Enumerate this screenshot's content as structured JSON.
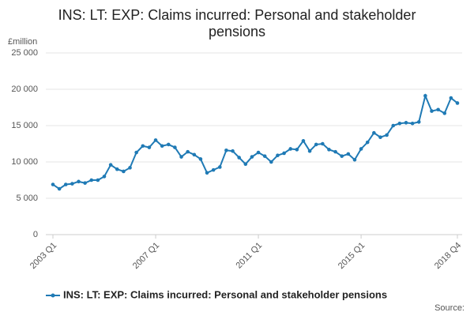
{
  "chart_data": {
    "type": "line",
    "title": [
      "INS: LT: EXP: Claims incurred: Personal and stakeholder",
      "pensions"
    ],
    "y_label": "£million",
    "source": "Source:",
    "categories": [
      "2003 Q1",
      null,
      null,
      null,
      null,
      null,
      null,
      null,
      null,
      null,
      null,
      null,
      null,
      null,
      null,
      null,
      "2007 Q1",
      null,
      null,
      null,
      null,
      null,
      null,
      null,
      null,
      null,
      null,
      null,
      null,
      null,
      null,
      null,
      "2011 Q1",
      null,
      null,
      null,
      null,
      null,
      null,
      null,
      null,
      null,
      null,
      null,
      null,
      null,
      null,
      null,
      "2015 Q1",
      null,
      null,
      null,
      null,
      null,
      null,
      null,
      null,
      null,
      null,
      null,
      null,
      null,
      null,
      "2018 Q4"
    ],
    "series": [
      {
        "name": "INS: LT: EXP: Claims incurred: Personal and stakeholder pensions",
        "color": "#1f7ab5",
        "values": [
          6900,
          6300,
          6900,
          7000,
          7300,
          7100,
          7500,
          7500,
          8000,
          9600,
          9000,
          8700,
          9200,
          11300,
          12200,
          12000,
          13000,
          12200,
          12400,
          12000,
          10700,
          11400,
          11000,
          10400,
          8500,
          8900,
          9300,
          11600,
          11500,
          10600,
          9700,
          10700,
          11300,
          10800,
          10000,
          10900,
          11200,
          11800,
          11700,
          12900,
          11500,
          12400,
          12500,
          11700,
          11400,
          10800,
          11100,
          10300,
          11800,
          12700,
          14000,
          13400,
          13700,
          15000,
          15300,
          15400,
          15300,
          15500,
          19100,
          17000,
          17200,
          16700,
          18800,
          18100
        ]
      }
    ],
    "ylim": [
      0,
      25000
    ],
    "yticks": [
      0,
      {
        "value": 5000,
        "label": "5 000"
      },
      {
        "value": 10000,
        "label": "10 000"
      },
      {
        "value": 15000,
        "label": "15 000"
      },
      {
        "value": 20000,
        "label": "20 000"
      },
      {
        "value": 25000,
        "label": "25 000"
      }
    ],
    "grid": true,
    "legend": "bottom"
  }
}
